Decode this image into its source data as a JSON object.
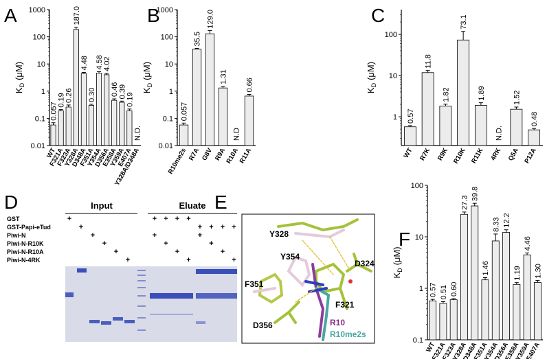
{
  "panels": [
    "A",
    "B",
    "C",
    "D",
    "E",
    "F"
  ],
  "chart_data": [
    {
      "type": "bar",
      "log_y": true,
      "color": "#ececec",
      "ylabel": {
        "symbol": "K",
        "subscript": "D",
        "unit": "(μM)"
      },
      "categories": [
        "WT",
        "F321A",
        "F323A",
        "Y328A",
        "D348A",
        "F351A",
        "Y354A",
        "D356A",
        "E358A",
        "Y359A",
        "E407A",
        "Y328A/D348A"
      ],
      "values": [
        0.057,
        0.19,
        0.26,
        187.0,
        4.48,
        0.3,
        4.58,
        4.02,
        0.46,
        0.39,
        0.19,
        null
      ],
      "errors": [
        0.012,
        0.02,
        0.05,
        40,
        0.4,
        0.03,
        0.6,
        0.5,
        0.06,
        0.04,
        0.03,
        null
      ],
      "value_labels": [
        "0.057",
        "0.19",
        "0.26",
        "187.0",
        "4.48",
        "0.30",
        "4.58",
        "4.02",
        "0.46",
        "0.39",
        "0.19",
        "N.D."
      ],
      "ylim": [
        0.01,
        1000
      ],
      "yticks": [
        0.01,
        0.1,
        1,
        10,
        100,
        1000
      ]
    },
    {
      "type": "bar",
      "log_y": true,
      "color": "#ececec",
      "ylabel": {
        "symbol": "K",
        "subscript": "D",
        "unit": "(μM)"
      },
      "categories": [
        "R10me2s",
        "R7A",
        "G8V",
        "R9A",
        "R10A",
        "R11A"
      ],
      "values": [
        0.057,
        35.5,
        129.0,
        1.31,
        null,
        0.66
      ],
      "errors": [
        0.01,
        2,
        40,
        0.2,
        null,
        0.1
      ],
      "value_labels": [
        "0.057",
        "35.5",
        "129.0",
        "1.31",
        "N.D",
        "0.66"
      ],
      "ylim": [
        0.01,
        1000
      ],
      "yticks": [
        0.01,
        0.1,
        1,
        10,
        100,
        1000
      ]
    },
    {
      "type": "bar",
      "log_y": true,
      "color": "#ececec",
      "ylabel": {
        "symbol": "K",
        "subscript": "D",
        "unit": "(μM)"
      },
      "categories": [
        "WT",
        "R7K",
        "R9K",
        "R10K",
        "R11K",
        "4RK",
        "Q5A",
        "P12A"
      ],
      "values": [
        0.57,
        11.8,
        1.82,
        73.1,
        1.89,
        null,
        1.52,
        0.48
      ],
      "errors": [
        0.04,
        1.5,
        0.2,
        45,
        0.3,
        null,
        0.2,
        0.04
      ],
      "value_labels": [
        "0.57",
        "11.8",
        "1.82",
        "73.1",
        "1.89",
        "N.D.",
        "1.52",
        "0.48"
      ],
      "ylim": [
        0.2,
        400
      ],
      "yticks": [
        1,
        10,
        100
      ]
    },
    {
      "type": "bar",
      "log_y": true,
      "color": "#ececec",
      "ylabel": {
        "symbol": "K",
        "subscript": "D",
        "unit": "(μM)"
      },
      "categories": [
        "WT",
        "F321A",
        "F323A",
        "Y328A",
        "D348A",
        "F351A",
        "Y354A",
        "D356A",
        "E358A",
        "Y359A",
        "E407A"
      ],
      "values": [
        0.57,
        0.51,
        0.6,
        27.3,
        39.8,
        1.46,
        8.33,
        12.2,
        1.19,
        4.46,
        1.3
      ],
      "errors": [
        0.04,
        0.04,
        0.03,
        3,
        5,
        0.15,
        3,
        1.5,
        0.1,
        0.4,
        0.12
      ],
      "value_labels": [
        "0.57",
        "0.51",
        "0.60",
        "27.3",
        "39.8",
        "1.46",
        "8.33",
        "12.2",
        "1.19",
        "4.46",
        "1.30"
      ],
      "ylim": [
        0.1,
        100
      ],
      "yticks": [
        0.1,
        1,
        10,
        100
      ]
    }
  ],
  "gel": {
    "headers": [
      "Input",
      "Eluate"
    ],
    "sign": "+",
    "rows": [
      {
        "label": "GST",
        "lanes": [
          0,
          6,
          7,
          8,
          9
        ]
      },
      {
        "label": "GST-Papi-eTud",
        "lanes": [
          1,
          10,
          11,
          12,
          13
        ]
      },
      {
        "label": "Piwi-N",
        "lanes": [
          2,
          6,
          10
        ]
      },
      {
        "label": "Piwi-N-R10K",
        "lanes": [
          3,
          7,
          11
        ]
      },
      {
        "label": "Piwi-N-R10A",
        "lanes": [
          4,
          8,
          12
        ]
      },
      {
        "label": "Piwi-N-4RK",
        "lanes": [
          5,
          9,
          13
        ]
      }
    ]
  },
  "structure": {
    "residues": [
      "Y328",
      "Y354",
      "D324",
      "F351",
      "F321",
      "D356"
    ],
    "ligands": [
      "R10",
      "R10me2s"
    ]
  }
}
